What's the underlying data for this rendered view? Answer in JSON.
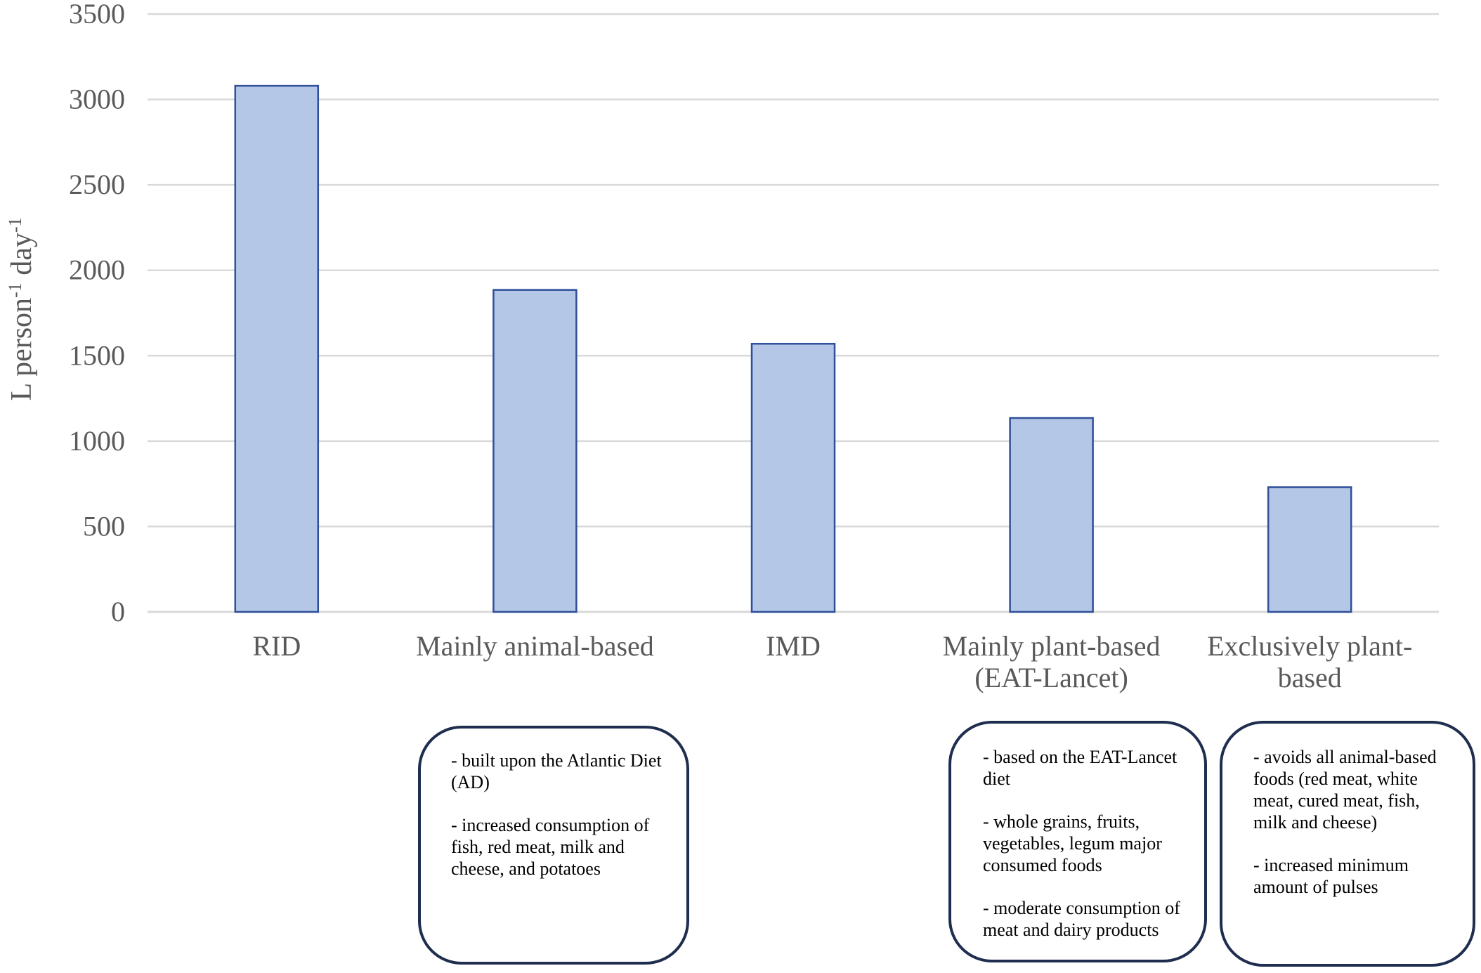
{
  "chart_data": {
    "type": "bar",
    "categories": [
      "RID",
      "Mainly animal-based",
      "IMD",
      "Mainly plant-based (EAT-Lancet)",
      "Exclusively plant-based"
    ],
    "category_lines": [
      [
        "RID"
      ],
      [
        "Mainly animal-based"
      ],
      [
        "IMD"
      ],
      [
        "Mainly plant-based",
        "(EAT-Lancet)"
      ],
      [
        "Exclusively plant-",
        "based"
      ]
    ],
    "values": [
      3080,
      1885,
      1570,
      1135,
      730
    ],
    "ylabel": "L person-1 day-1",
    "ylabel_parts": {
      "a": "L person",
      "sup1": "-1",
      "b": " day",
      "sup2": "-1"
    },
    "ylim": [
      0,
      3500
    ],
    "yticks": [
      "0",
      "500",
      "1000",
      "1500",
      "2000",
      "2500",
      "3000",
      "3500"
    ],
    "grid": true,
    "legend": "none",
    "colors": {
      "bar_fill": "#b4c7e7",
      "bar_stroke": "#2f4f99",
      "grid": "#d9d9d9",
      "box_border": "#1f2e4f"
    },
    "annotations": [
      {
        "category": "Mainly animal-based",
        "lines": [
          "- built upon the Atlantic Diet (AD)",
          "- increased consumption of fish, red meat, milk and cheese, and potatoes"
        ]
      },
      {
        "category": "Mainly plant-based (EAT-Lancet)",
        "lines": [
          "- based on the EAT-Lancet diet",
          "-  whole grains, fruits, vegetables,  legum major consumed foods",
          "- moderate consumption of meat and dairy products"
        ]
      },
      {
        "category": "Exclusively plant-based",
        "lines": [
          "- avoids all animal-based foods (red meat, white meat, cured meat, fish, milk and cheese)",
          "- increased minimum amount of pulses"
        ]
      }
    ]
  }
}
